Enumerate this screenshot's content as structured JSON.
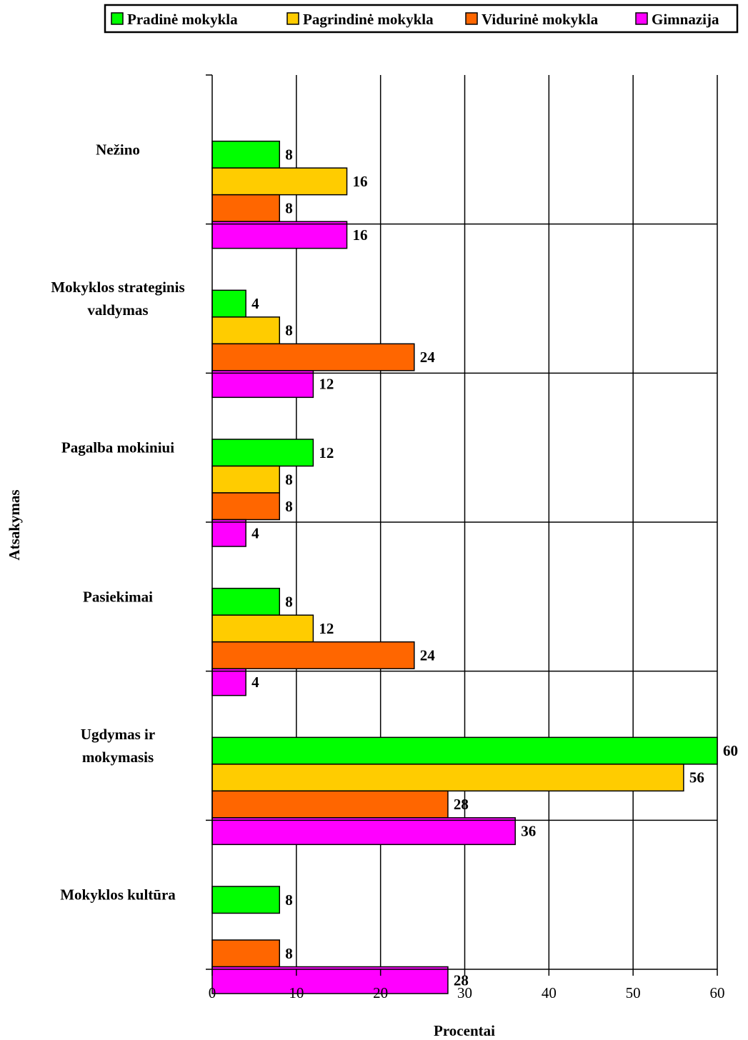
{
  "chart_data": {
    "type": "bar",
    "orientation": "horizontal",
    "title": "",
    "xlabel": "Procentai",
    "ylabel": "Atsakymas",
    "xlim": [
      0,
      60
    ],
    "xticks": [
      0,
      10,
      20,
      30,
      40,
      50,
      60
    ],
    "grid": "vertical",
    "legend_position": "top",
    "categories": [
      "Nežino",
      "Mokyklos strateginis valdymas",
      "Pagalba mokiniui",
      "Pasiekimai",
      "Ugdymas ir mokymasis",
      "Mokyklos kultūra"
    ],
    "category_lines": [
      [
        "Nežino"
      ],
      [
        "Mokyklos strateginis",
        "valdymas"
      ],
      [
        "Pagalba mokiniui"
      ],
      [
        "Pasiekimai"
      ],
      [
        "Ugdymas ir",
        "mokymasis"
      ],
      [
        "Mokyklos kultūra"
      ]
    ],
    "series": [
      {
        "name": "Pradinė mokykla",
        "color": "#00ff00",
        "values": [
          8,
          4,
          12,
          8,
          60,
          8
        ]
      },
      {
        "name": "Pagrindinė mokykla",
        "color": "#ffcc00",
        "values": [
          16,
          8,
          8,
          12,
          56,
          null
        ]
      },
      {
        "name": "Vidurinė mokykla",
        "color": "#ff6600",
        "values": [
          8,
          24,
          8,
          24,
          28,
          8
        ]
      },
      {
        "name": "Gimnazija",
        "color": "#ff00ff",
        "values": [
          16,
          12,
          4,
          4,
          36,
          28
        ]
      }
    ]
  }
}
